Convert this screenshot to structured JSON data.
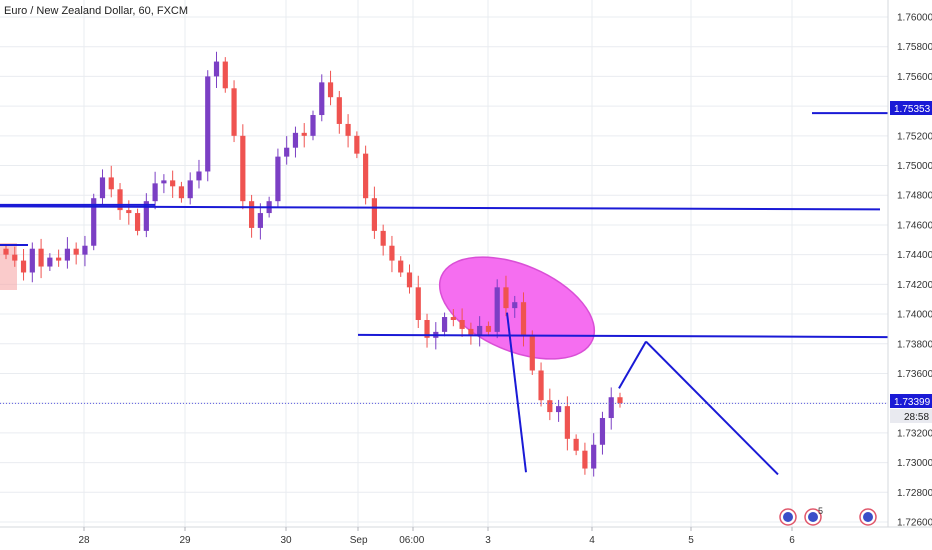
{
  "title": "Euro / New Zealand Dollar, 60, FXCM",
  "colors": {
    "up": "#7b3fc4",
    "down": "#ef5350",
    "drawing": "#1a1ad6",
    "ellipse_fill": "#f56ef0",
    "ellipse_stroke": "#d94fd6",
    "grid": "#e9ecf0",
    "axis_text": "#333333",
    "price_tag_bg": "#1a1ad6",
    "current_tag_bg": "#1a1ad6",
    "time_tag_bg": "#e9eaf0"
  },
  "price_axis": {
    "ticks": [
      "1.76000",
      "1.75800",
      "1.75600",
      "1.75400",
      "1.75200",
      "1.75000",
      "1.74800",
      "1.74600",
      "1.74400",
      "1.74200",
      "1.74000",
      "1.73800",
      "1.73600",
      "1.73400",
      "1.73200",
      "1.73000",
      "1.72800",
      "1.72600"
    ],
    "level_tag": "1.75353",
    "current_price": "1.73399",
    "countdown": "28:58"
  },
  "time_axis": {
    "labels": [
      "28",
      "29",
      "30",
      "Sep",
      "06:00",
      "3",
      "4",
      "5",
      "6"
    ]
  },
  "markers": {
    "event_badge": "5"
  },
  "chart_data": {
    "type": "candlestick",
    "title": "Euro / New Zealand Dollar, 60, FXCM",
    "symbol": "EURNZD",
    "interval": "60",
    "source": "FXCM",
    "ylim": [
      1.7255,
      1.7615
    ],
    "grid": true,
    "x_labels": [
      "28",
      "29",
      "30",
      "Sep",
      "06:00",
      "3",
      "4",
      "5",
      "6"
    ],
    "close_series": [
      1.744,
      1.7436,
      1.7428,
      1.7444,
      1.7432,
      1.7438,
      1.7436,
      1.7444,
      1.744,
      1.7446,
      1.7478,
      1.7492,
      1.7484,
      1.747,
      1.7468,
      1.7456,
      1.7476,
      1.7488,
      1.749,
      1.7486,
      1.7478,
      1.749,
      1.7496,
      1.756,
      1.757,
      1.7552,
      1.752,
      1.7476,
      1.7458,
      1.7468,
      1.7476,
      1.7506,
      1.7512,
      1.7522,
      1.752,
      1.7534,
      1.7556,
      1.7546,
      1.7528,
      1.752,
      1.7508,
      1.7478,
      1.7456,
      1.7446,
      1.7436,
      1.7428,
      1.7418,
      1.7396,
      1.7384,
      1.7388,
      1.7398,
      1.7396,
      1.739,
      1.7386,
      1.7392,
      1.7388,
      1.7418,
      1.7404,
      1.7408,
      1.7386,
      1.7362,
      1.7342,
      1.7334,
      1.7338,
      1.7316,
      1.7308,
      1.7296,
      1.7312,
      1.733,
      1.7344,
      1.734
    ],
    "current_price": 1.73399,
    "horizontal_levels": [
      1.74725,
      1.74465,
      1.73852,
      1.75353
    ],
    "annotations": [
      "ellipse",
      "trend lines"
    ]
  }
}
